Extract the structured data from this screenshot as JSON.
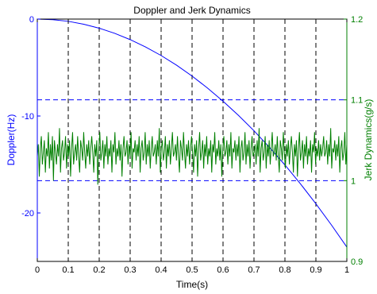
{
  "chart_data": {
    "type": "line",
    "title": "Doppler and Jerk Dynamics",
    "xlabel": "Time(s)",
    "ylabel_left": "Doppler(Hz)",
    "ylabel_right": "Jerk Dynamics(g/s)",
    "xlim": [
      0,
      1
    ],
    "ylim_left": [
      -25,
      0
    ],
    "ylim_right": [
      0.9,
      1.2
    ],
    "x_ticks": [
      "0",
      "0.1",
      "0.2",
      "0.3",
      "0.4",
      "0.5",
      "0.6",
      "0.7",
      "0.8",
      "0.9",
      "1"
    ],
    "y_left_ticks": [
      {
        "value": 0,
        "label": "0"
      },
      {
        "value": -10,
        "label": "-10"
      },
      {
        "value": -20,
        "label": "-20"
      }
    ],
    "y_right_ticks": [
      {
        "value": 1.0,
        "label": "1"
      },
      {
        "value": 1.1,
        "label": "1.1"
      },
      {
        "value": 1.2,
        "label": "1.2"
      }
    ],
    "grid": {
      "x": true,
      "y_right": true,
      "style": "dashed"
    },
    "colors": {
      "doppler": "#0000ff",
      "jerk": "#007f00",
      "grid_x": "#000000",
      "grid_y": "#0000ff"
    },
    "series": [
      {
        "axis": "left",
        "x": [
          0,
          0.05,
          0.1,
          0.15,
          0.2,
          0.25,
          0.3,
          0.35,
          0.4,
          0.45,
          0.5,
          0.55,
          0.6,
          0.65,
          0.7,
          0.75,
          0.8,
          0.85,
          0.9,
          0.95,
          1.0
        ],
        "values": [
          0,
          -0.06,
          -0.23,
          -0.53,
          -0.94,
          -1.47,
          -2.12,
          -2.88,
          -3.76,
          -4.76,
          -5.88,
          -7.12,
          -8.47,
          -9.94,
          -11.52,
          -13.23,
          -15.05,
          -16.99,
          -19.05,
          -21.23,
          -23.52
        ]
      },
      {
        "axis": "right",
        "x_start": 0,
        "x_end": 1,
        "values": [
          1.03,
          1.045,
          1.005,
          1.04,
          1.055,
          1.02,
          1.035,
          1.05,
          1.01,
          1.04,
          1.03,
          1.06,
          1.015,
          1.045,
          1.025,
          1.055,
          1.0,
          1.05,
          1.035,
          1.02,
          1.045,
          1.03,
          1.065,
          1.01,
          1.04,
          1.05,
          1.025,
          1.035,
          1.055,
          1.015,
          1.045,
          1.03,
          1.05,
          1.005,
          1.04,
          1.06,
          1.02,
          1.035,
          1.045,
          1.025,
          1.055,
          1.03,
          1.01,
          1.05,
          1.04,
          1.025,
          1.06,
          1.035,
          1.015,
          1.045,
          1.03,
          1.05,
          1.02,
          1.04,
          1.055,
          1.035,
          1.01,
          1.045,
          1.03,
          1.05,
          0.995,
          1.04,
          1.06,
          1.025,
          1.035,
          1.05,
          1.015,
          1.045,
          1.03,
          1.055,
          1.02,
          1.04,
          1.03,
          1.05,
          1.01,
          1.045,
          1.035,
          1.06,
          1.02,
          1.04,
          1.03,
          1.05,
          1.025,
          1.045,
          1.005,
          1.04,
          1.055,
          1.03,
          1.035,
          1.05,
          1.02,
          1.045,
          1.03,
          1.06,
          1.015,
          1.04,
          1.035,
          1.05,
          1.025,
          1.045,
          1.03,
          1.055,
          1.01,
          1.04,
          1.05,
          1.025,
          1.035,
          1.06,
          1.02,
          1.045,
          1.03,
          1.05,
          1.015,
          1.04,
          1.055,
          1.03,
          1.035,
          1.045,
          1.02,
          1.05,
          1.03,
          1.065,
          1.01,
          1.04,
          1.05,
          1.025,
          1.035,
          1.055,
          1.015,
          1.045,
          1.03,
          1.05,
          1.02,
          1.04,
          1.06,
          1.03,
          1.035,
          1.045,
          1.025,
          1.055,
          1.03,
          1.01,
          1.05,
          1.04,
          1.025,
          1.06,
          1.035,
          1.015,
          1.045,
          1.03,
          1.05,
          1.02,
          1.04,
          1.055,
          1.035,
          1.01,
          1.045,
          1.03,
          1.05,
          1.005,
          1.04,
          1.06,
          1.025,
          1.035,
          1.05,
          1.015,
          1.045,
          1.03,
          1.055,
          1.02,
          1.04,
          1.03,
          1.05,
          1.01,
          1.045,
          1.035,
          1.06,
          1.02,
          1.04,
          1.03,
          1.05,
          1.025,
          1.045,
          1.005,
          1.04,
          1.055,
          1.03,
          1.035,
          1.05,
          1.02,
          1.045,
          1.03,
          1.06,
          1.015,
          1.04,
          1.035,
          1.05,
          1.025,
          1.045,
          1.03,
          1.055,
          1.01,
          1.04,
          1.05,
          1.025,
          1.035,
          1.06,
          1.02,
          1.045,
          1.03,
          1.05,
          1.015,
          1.04,
          1.055,
          1.03,
          1.035,
          1.045,
          1.02,
          1.05,
          1.03,
          1.065,
          1.01,
          1.04,
          1.05,
          1.025,
          1.035,
          1.055,
          1.015,
          1.045,
          1.03,
          1.05,
          1.02,
          1.04,
          1.06,
          1.03,
          1.035,
          1.045,
          1.025,
          1.055,
          1.03,
          1.01,
          1.05,
          1.04,
          1.025,
          1.06,
          1.035,
          1.015,
          1.045,
          1.03,
          1.05,
          1.02,
          1.04,
          1.055,
          1.035,
          1.01,
          1.045,
          1.03,
          1.05,
          1.005,
          1.04,
          1.06,
          1.025,
          1.035,
          1.05,
          1.015,
          1.045,
          1.03,
          1.055,
          1.02,
          1.04,
          1.03,
          1.05,
          1.01,
          1.045,
          1.035,
          1.06,
          1.02,
          1.04,
          1.03,
          1.05,
          1.025,
          1.045,
          1.03,
          1.04,
          1.055,
          1.03,
          1.035,
          1.05,
          1.02,
          1.045,
          1.03,
          1.065,
          1.015,
          1.04,
          1.035,
          1.05,
          1.025,
          1.045,
          1.03,
          1.055,
          1.01,
          1.04,
          1.05,
          1.025,
          1.035,
          1.06,
          1.02,
          1.045
        ]
      }
    ]
  }
}
